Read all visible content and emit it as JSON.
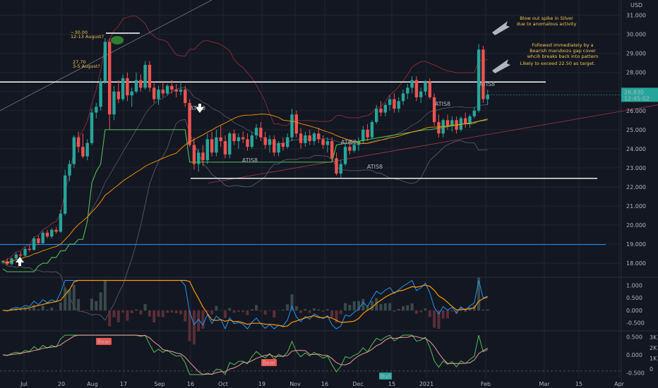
{
  "header": {
    "currency": "USD"
  },
  "chart_data": [
    {
      "type": "candlestick",
      "currency": "USD",
      "x_tick_labels": [
        "Jul",
        "20",
        "Aug",
        "17",
        "Sep",
        "16",
        "Oct",
        "19",
        "Nov",
        "16",
        "Dec",
        "15",
        "2021",
        "Feb",
        "Mar",
        "15",
        "Apr"
      ],
      "y_tick_labels": [
        "18.000",
        "19.000",
        "20.000",
        "21.000",
        "22.000",
        "23.000",
        "24.000",
        "25.000",
        "26.000",
        "27.000",
        "28.000",
        "29.000",
        "30.000",
        "31.000"
      ],
      "ylim": [
        17.3,
        31.8
      ],
      "last_price": {
        "value": "26.830",
        "countdown": "12:45:02",
        "color": "#26a69a"
      },
      "horizontal_levels": [
        {
          "value": 27.5,
          "color": "#ffffff"
        },
        {
          "value": 22.45,
          "color": "#ffffff"
        },
        {
          "value": 18.98,
          "color": "#2196f3"
        }
      ],
      "candles": [
        [
          18.05,
          18.15,
          17.95,
          18.1
        ],
        [
          18.1,
          18.25,
          17.9,
          17.95
        ],
        [
          17.95,
          18.3,
          17.9,
          18.25
        ],
        [
          18.25,
          18.55,
          18.2,
          18.45
        ],
        [
          18.45,
          18.6,
          18.3,
          18.4
        ],
        [
          18.4,
          18.85,
          18.35,
          18.75
        ],
        [
          18.75,
          18.95,
          18.6,
          18.7
        ],
        [
          18.7,
          19.4,
          18.65,
          19.3
        ],
        [
          19.3,
          19.45,
          18.95,
          19.05
        ],
        [
          19.05,
          19.7,
          19.0,
          19.6
        ],
        [
          19.6,
          19.75,
          19.3,
          19.4
        ],
        [
          19.4,
          19.85,
          19.3,
          19.75
        ],
        [
          19.75,
          19.9,
          19.55,
          19.65
        ],
        [
          19.65,
          20.8,
          19.6,
          20.6
        ],
        [
          20.6,
          22.9,
          20.5,
          22.6
        ],
        [
          22.6,
          23.4,
          22.3,
          23.2
        ],
        [
          23.2,
          24.7,
          23.0,
          24.6
        ],
        [
          24.6,
          24.9,
          23.8,
          24.1
        ],
        [
          24.1,
          24.8,
          23.5,
          23.6
        ],
        [
          23.6,
          24.5,
          23.4,
          24.3
        ],
        [
          24.3,
          26.1,
          24.2,
          25.9
        ],
        [
          25.9,
          26.4,
          25.6,
          26.2
        ],
        [
          26.2,
          27.7,
          26.0,
          27.5
        ],
        [
          27.5,
          29.8,
          27.4,
          29.6
        ],
        [
          29.6,
          29.8,
          25.0,
          25.8
        ],
        [
          25.8,
          27.3,
          25.5,
          27.0
        ],
        [
          27.0,
          27.6,
          26.4,
          26.6
        ],
        [
          26.6,
          27.9,
          26.5,
          27.7
        ],
        [
          27.7,
          28.0,
          26.5,
          26.8
        ],
        [
          26.8,
          27.2,
          26.2,
          27.0
        ],
        [
          27.0,
          28.0,
          26.9,
          27.6
        ],
        [
          27.6,
          27.9,
          27.0,
          27.2
        ],
        [
          27.2,
          28.6,
          27.1,
          28.4
        ],
        [
          28.4,
          28.6,
          27.0,
          27.2
        ],
        [
          27.2,
          27.5,
          26.4,
          26.6
        ],
        [
          26.6,
          27.3,
          26.3,
          27.1
        ],
        [
          27.1,
          27.5,
          26.7,
          26.9
        ],
        [
          26.9,
          27.4,
          26.8,
          27.3
        ],
        [
          27.3,
          27.6,
          26.9,
          27.1
        ],
        [
          27.1,
          27.4,
          26.7,
          27.0
        ],
        [
          27.0,
          27.5,
          26.8,
          27.1
        ],
        [
          27.1,
          27.3,
          26.2,
          26.4
        ],
        [
          26.4,
          26.6,
          24.1,
          24.2
        ],
        [
          24.2,
          24.6,
          22.9,
          23.2
        ],
        [
          23.2,
          24.0,
          22.8,
          23.8
        ],
        [
          23.8,
          24.2,
          23.1,
          23.4
        ],
        [
          23.4,
          24.8,
          23.2,
          24.5
        ],
        [
          24.5,
          24.9,
          23.6,
          23.8
        ],
        [
          23.8,
          25.0,
          23.6,
          24.6
        ],
        [
          24.6,
          25.2,
          24.1,
          24.4
        ],
        [
          24.4,
          24.7,
          23.5,
          23.7
        ],
        [
          23.7,
          24.9,
          23.5,
          24.8
        ],
        [
          24.8,
          25.0,
          24.2,
          24.4
        ],
        [
          24.4,
          24.8,
          24.0,
          24.6
        ],
        [
          24.6,
          24.9,
          24.3,
          24.5
        ],
        [
          24.5,
          24.8,
          23.9,
          24.1
        ],
        [
          24.1,
          24.9,
          24.0,
          24.7
        ],
        [
          24.7,
          25.3,
          24.5,
          25.1
        ],
        [
          25.1,
          25.4,
          24.4,
          24.6
        ],
        [
          24.6,
          24.9,
          24.0,
          24.2
        ],
        [
          24.2,
          24.7,
          23.8,
          24.5
        ],
        [
          24.5,
          24.7,
          23.6,
          23.8
        ],
        [
          23.8,
          24.4,
          23.6,
          24.3
        ],
        [
          24.3,
          24.6,
          23.9,
          24.1
        ],
        [
          24.1,
          24.8,
          24.0,
          24.6
        ],
        [
          24.6,
          26.1,
          24.4,
          25.8
        ],
        [
          25.8,
          26.0,
          24.6,
          24.8
        ],
        [
          24.8,
          25.1,
          24.0,
          24.3
        ],
        [
          24.3,
          24.9,
          24.1,
          24.7
        ],
        [
          24.7,
          25.0,
          24.2,
          24.4
        ],
        [
          24.4,
          24.9,
          24.2,
          24.8
        ],
        [
          24.8,
          25.1,
          24.3,
          24.5
        ],
        [
          24.5,
          24.7,
          24.0,
          24.2
        ],
        [
          24.2,
          24.6,
          23.8,
          24.4
        ],
        [
          24.4,
          24.6,
          23.3,
          23.5
        ],
        [
          23.5,
          23.8,
          22.6,
          22.7
        ],
        [
          22.7,
          23.4,
          22.5,
          23.2
        ],
        [
          23.2,
          24.3,
          23.1,
          24.1
        ],
        [
          24.1,
          24.5,
          23.7,
          23.9
        ],
        [
          23.9,
          24.4,
          23.8,
          24.2
        ],
        [
          24.2,
          24.6,
          23.9,
          24.4
        ],
        [
          24.4,
          25.2,
          24.3,
          25.0
        ],
        [
          25.0,
          25.3,
          24.4,
          24.6
        ],
        [
          24.6,
          25.5,
          24.5,
          25.4
        ],
        [
          25.4,
          26.3,
          25.3,
          26.1
        ],
        [
          26.1,
          26.5,
          25.7,
          25.9
        ],
        [
          25.9,
          26.4,
          25.7,
          26.3
        ],
        [
          26.3,
          26.8,
          26.0,
          26.6
        ],
        [
          26.6,
          26.9,
          25.9,
          26.1
        ],
        [
          26.1,
          26.7,
          25.9,
          26.5
        ],
        [
          26.5,
          27.1,
          26.3,
          26.9
        ],
        [
          26.9,
          27.4,
          26.6,
          27.2
        ],
        [
          27.2,
          27.8,
          26.9,
          27.6
        ],
        [
          27.6,
          27.8,
          26.5,
          26.7
        ],
        [
          26.7,
          27.2,
          26.4,
          27.0
        ],
        [
          27.0,
          27.6,
          26.8,
          27.5
        ],
        [
          27.5,
          27.7,
          26.6,
          26.7
        ],
        [
          26.7,
          26.9,
          25.2,
          25.4
        ],
        [
          25.4,
          25.8,
          24.6,
          24.8
        ],
        [
          24.8,
          25.6,
          24.6,
          25.5
        ],
        [
          25.5,
          25.8,
          25.0,
          25.2
        ],
        [
          25.2,
          25.7,
          24.9,
          25.5
        ],
        [
          25.5,
          25.7,
          24.8,
          25.0
        ],
        [
          25.0,
          25.7,
          24.9,
          25.6
        ],
        [
          25.6,
          25.9,
          25.1,
          25.3
        ],
        [
          25.3,
          25.8,
          25.1,
          25.7
        ],
        [
          25.7,
          26.2,
          25.6,
          26.0
        ],
        [
          26.0,
          29.5,
          25.9,
          29.2
        ],
        [
          29.2,
          29.4,
          26.4,
          26.6
        ],
        [
          26.6,
          27.1,
          26.3,
          26.83
        ]
      ]
    },
    {
      "type": "line",
      "name": "oscillator-1",
      "y_tick_labels": [
        "1.000",
        "0.500",
        "0.000",
        "-0.500"
      ],
      "ylim": [
        -0.8,
        1.3
      ]
    },
    {
      "type": "line",
      "name": "oscillator-2",
      "y_tick_labels": [
        "0.500",
        "0.000",
        "-0.500"
      ],
      "right_tick_labels": [
        "3K",
        "2K",
        "1K",
        "0"
      ],
      "ylim": [
        -0.65,
        0.65
      ]
    }
  ],
  "annotations": {
    "blowout": "Blow out spike in Silver\ndue to anomalous activity",
    "followed": "Followed immediately by a\nBearish marubozu gap cover\nwhcih breaks back into pattern",
    "target": "Likely to exceed 22.50 as target.",
    "aug_high": "~30.00\n12-13 August?",
    "aug_low": "27.70\n3-5 August?",
    "atis_labels": [
      "ATIS8",
      "ATIS8",
      "ATIS8",
      "ATIS8",
      "ATIS8",
      "ATIS8"
    ],
    "bear_labels": [
      "Bear",
      "Bear"
    ],
    "bull_label": "Bull"
  },
  "colors": {
    "background": "#131722",
    "grid": "#1f2430",
    "bull": "#26a69a",
    "bear": "#ef5350",
    "supertrend": "#4caf50",
    "orange": "#ff9800",
    "blue": "#2196f3",
    "annotation": "#f0c84a"
  }
}
